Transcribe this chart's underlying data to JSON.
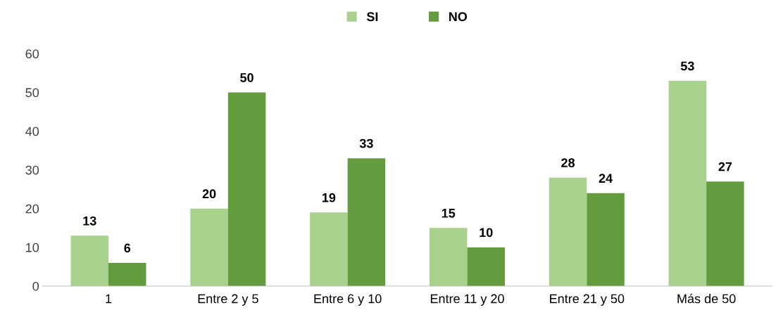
{
  "chart_data": {
    "type": "bar",
    "categories": [
      "1",
      "Entre 2 y 5",
      "Entre 6 y 10",
      "Entre 11 y 20",
      "Entre 21 y 50",
      "Más de 50"
    ],
    "series": [
      {
        "name": "SI",
        "color": "#a9d18e",
        "values": [
          13,
          20,
          19,
          15,
          28,
          53
        ]
      },
      {
        "name": "NO",
        "color": "#639b3f",
        "values": [
          6,
          50,
          33,
          10,
          24,
          27
        ]
      }
    ],
    "ylim": [
      0,
      60
    ],
    "yticks": [
      0,
      10,
      20,
      30,
      40,
      50,
      60
    ],
    "grid": false,
    "legend": "top",
    "data_labels": true
  }
}
